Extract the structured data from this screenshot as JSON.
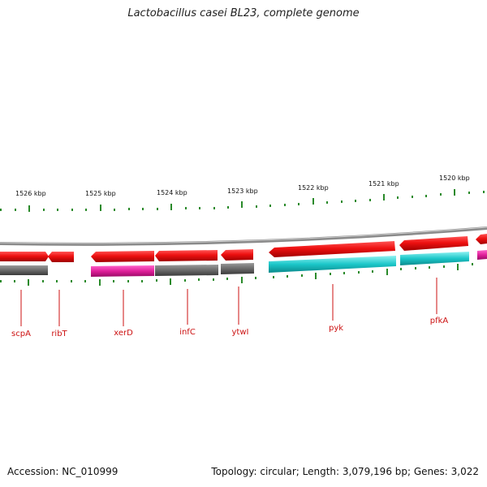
{
  "title": "Lactobacillus casei BL23, complete genome",
  "accession": "Accession: NC_010999",
  "summary": "Topology: circular; Length: 3,079,196 bp; Genes: 3,022",
  "colors": {
    "forward_cds": "#ee1111",
    "reverse_gray": "#6a6a6a",
    "reverse_magenta": "#e0209a",
    "reverse_cyan": "#1cc7c9",
    "backbone": "#8a8a8a",
    "tick": "#2a8a2a",
    "label": "#cc1111"
  },
  "kbp_labels": [
    "1526 kbp",
    "1525 kbp",
    "1524 kbp",
    "1523 kbp",
    "1522 kbp",
    "1521 kbp",
    "1520 kbp"
  ],
  "genes": [
    "scpA",
    "ribT",
    "xerD",
    "infC",
    "ytwI",
    "pyk",
    "pfkA"
  ]
}
